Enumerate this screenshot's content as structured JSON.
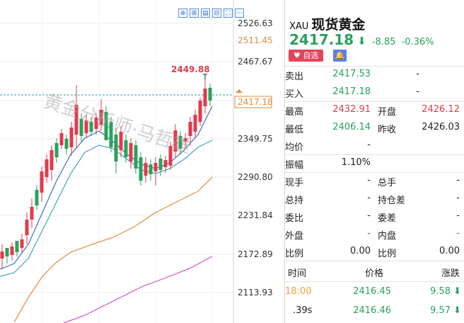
{
  "chart": {
    "axis_labels": [
      "2526.63",
      "2511.45",
      "2467.67",
      "2417.18",
      "2349.75",
      "2290.80",
      "2231.84",
      "2172.89",
      "2113.93"
    ],
    "current_price_label": "2417.18",
    "high_label": "2449.88",
    "watermark": "黄金分析师·马哲雄",
    "colors": {
      "up": "#e23a4d",
      "down": "#2aa15d",
      "ma5": "#3a6fc0",
      "ma10": "#41a5b8",
      "ma20": "#e48a3c",
      "ma30": "#d64fbf",
      "price_line": "#2aa7a0"
    }
  },
  "toolbar": [
    "⊕",
    "⊞",
    "▤",
    "⊟",
    "⛶",
    "⋯"
  ],
  "quote": {
    "symbol": "XAU",
    "name": "现货黄金",
    "price": "2417.18",
    "arrow": "⬇",
    "change": "-8.85",
    "change_pct": "-0.36%",
    "watch_label": "自选",
    "alert_icon": "🔔"
  },
  "rows": [
    {
      "l1": "卖出",
      "v1": "2417.53",
      "c1": "green",
      "l2": "",
      "v2": "-",
      "c2": "dark"
    },
    {
      "l1": "买入",
      "v1": "2417.18",
      "c1": "green",
      "l2": "",
      "v2": "-",
      "c2": "dark"
    },
    {
      "l1": "最高",
      "v1": "2432.91",
      "c1": "red",
      "l2": "开盘",
      "v2": "2426.12",
      "c2": "red"
    },
    {
      "l1": "最低",
      "v1": "2406.14",
      "c1": "green",
      "l2": "昨收",
      "v2": "2426.03",
      "c2": "dark"
    },
    {
      "l1": "均价",
      "v1": "-",
      "c1": "dark",
      "l2": "",
      "v2": "",
      "c2": "dark"
    },
    {
      "l1": "振幅",
      "v1": "1.10%",
      "c1": "dark",
      "l2": "",
      "v2": "",
      "c2": "dark"
    },
    {
      "l1": "现手",
      "v1": "-",
      "c1": "dark",
      "l2": "总手",
      "v2": "-",
      "c2": "dark"
    },
    {
      "l1": "总持",
      "v1": "-",
      "c1": "dark",
      "l2": "持仓差",
      "v2": "-",
      "c2": "dark"
    },
    {
      "l1": "委比",
      "v1": "-",
      "c1": "dark",
      "l2": "委差",
      "v2": "-",
      "c2": "dark"
    },
    {
      "l1": "外盘",
      "v1": "-",
      "c1": "red",
      "l2": "内盘",
      "v2": "-",
      "c2": "green"
    },
    {
      "l1": "比例",
      "v1": "0.00",
      "c1": "dark",
      "l2": "比例",
      "v2": "0.00",
      "c2": "dark"
    }
  ],
  "ticks": {
    "headers": [
      "时间",
      "价格",
      "涨跌"
    ],
    "items": [
      {
        "time": "18:00",
        "price": "2416.45",
        "change": "9.58",
        "arrow": "⬇"
      },
      {
        "time": ".39s",
        "price": "2416.46",
        "change": "9.57",
        "arrow": "⬇"
      }
    ]
  }
}
